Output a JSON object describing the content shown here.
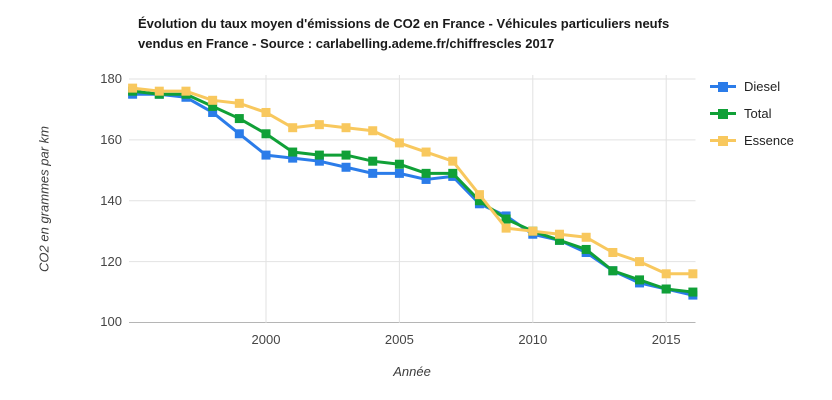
{
  "chart_data": {
    "type": "line",
    "title": "Évolution du taux moyen d'émissions de CO2 en France - Véhicules particuliers neufs vendus en France - Source : carlabelling.ademe.fr/chiffrescles 2017",
    "xlabel": "Année",
    "ylabel": "CO2 en grammes par km",
    "x": [
      1995,
      1996,
      1997,
      1998,
      1999,
      2000,
      2001,
      2002,
      2003,
      2004,
      2005,
      2006,
      2007,
      2008,
      2009,
      2010,
      2011,
      2012,
      2013,
      2014,
      2015,
      2016
    ],
    "x_ticks": [
      2000,
      2005,
      2010,
      2015
    ],
    "y_ticks": [
      100,
      120,
      140,
      160,
      180
    ],
    "ylim": [
      100,
      180
    ],
    "grid": true,
    "legend_position": "right",
    "series": [
      {
        "name": "Diesel",
        "color": "#2b7ce9",
        "values": [
          175,
          175,
          174,
          169,
          162,
          155,
          154,
          153,
          151,
          149,
          149,
          147,
          148,
          139,
          135,
          129,
          127,
          123,
          117,
          113,
          111,
          109
        ]
      },
      {
        "name": "Total",
        "color": "#10a037",
        "values": [
          176,
          175,
          175,
          171,
          167,
          162,
          156,
          155,
          155,
          153,
          152,
          149,
          149,
          140,
          134,
          130,
          127,
          124,
          117,
          114,
          111,
          110
        ]
      },
      {
        "name": "Essence",
        "color": "#f8c85e",
        "values": [
          177,
          176,
          176,
          173,
          172,
          169,
          164,
          165,
          164,
          163,
          159,
          156,
          153,
          142,
          131,
          130,
          129,
          128,
          123,
          120,
          116,
          116
        ]
      }
    ],
    "colors": {
      "gridline": "#e2e2e2",
      "axis_line": "#b5b5b5",
      "tick_text": "#454545"
    }
  }
}
